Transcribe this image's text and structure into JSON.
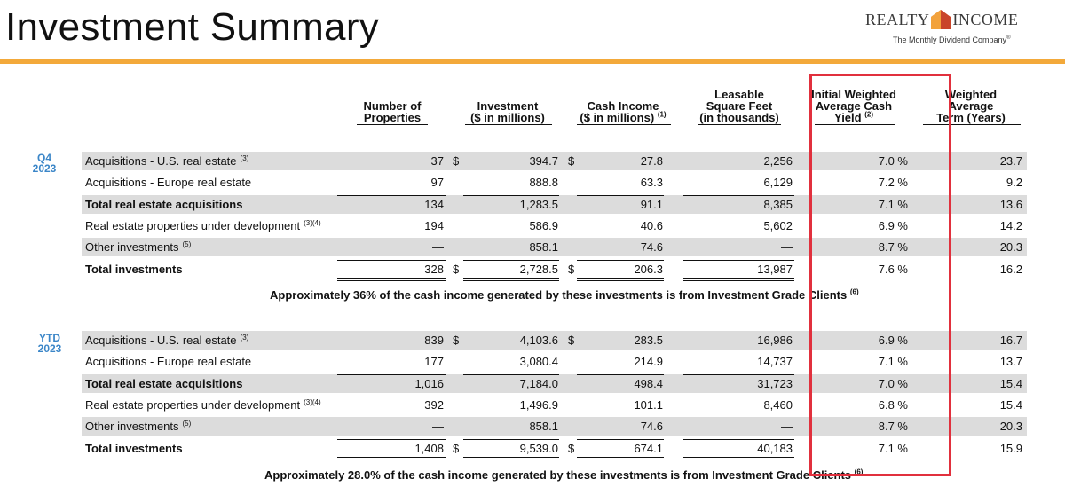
{
  "title": "Investment Summary",
  "logo": {
    "left": "REALTY",
    "right": "INCOME",
    "tagline": "The Monthly Dividend Company",
    "tagline_mark": "®"
  },
  "headers": {
    "num_props": [
      "Number of",
      "Properties"
    ],
    "investment": [
      "Investment",
      "($ in millions)"
    ],
    "cash_income": [
      "Cash Income",
      "($ in millions)"
    ],
    "cash_income_note": "(1)",
    "leasable": [
      "Leasable",
      "Square Feet",
      "(in thousands)"
    ],
    "yield": [
      "Initial Weighted",
      "Average Cash",
      "Yield"
    ],
    "yield_note": "(2)",
    "term": [
      "Weighted",
      "Average",
      "Term (Years)"
    ]
  },
  "sections": [
    {
      "period": [
        "Q4",
        "2023"
      ],
      "rows": [
        {
          "label": "Acquisitions - U.S. real estate",
          "note": "(3)",
          "bold": false,
          "props": "37",
          "dollar1": "$",
          "investment": "394.7",
          "dollar2": "$",
          "cash": "27.8",
          "sqft": "2,256",
          "yield": "7.0 %",
          "term": "23.7"
        },
        {
          "label": "Acquisitions - Europe real estate",
          "note": "",
          "bold": false,
          "props": "97",
          "dollar1": "",
          "investment": "888.8",
          "dollar2": "",
          "cash": "63.3",
          "sqft": "6,129",
          "yield": "7.2 %",
          "term": "9.2"
        },
        {
          "label": "Total real estate acquisitions",
          "note": "",
          "bold": true,
          "props": "134",
          "dollar1": "",
          "investment": "1,283.5",
          "dollar2": "",
          "cash": "91.1",
          "sqft": "8,385",
          "yield": "7.1 %",
          "term": "13.6"
        },
        {
          "label": "Real estate properties under development",
          "note": "(3)(4)",
          "bold": false,
          "props": "194",
          "dollar1": "",
          "investment": "586.9",
          "dollar2": "",
          "cash": "40.6",
          "sqft": "5,602",
          "yield": "6.9 %",
          "term": "14.2"
        },
        {
          "label": "Other investments",
          "note": "(5)",
          "bold": false,
          "props": "—",
          "dollar1": "",
          "investment": "858.1",
          "dollar2": "",
          "cash": "74.6",
          "sqft": "—",
          "yield": "8.7 %",
          "term": "20.3"
        },
        {
          "label": "Total investments",
          "note": "",
          "bold": true,
          "props": "328",
          "dollar1": "$",
          "investment": "2,728.5",
          "dollar2": "$",
          "cash": "206.3",
          "sqft": "13,987",
          "yield": "7.6 %",
          "term": "16.2"
        }
      ],
      "note": "Approximately 36% of the cash income generated by these investments is from Investment Grade Clients",
      "note_mark": "(6)"
    },
    {
      "period": [
        "YTD",
        "2023"
      ],
      "rows": [
        {
          "label": "Acquisitions - U.S. real estate",
          "note": "(3)",
          "bold": false,
          "props": "839",
          "dollar1": "$",
          "investment": "4,103.6",
          "dollar2": "$",
          "cash": "283.5",
          "sqft": "16,986",
          "yield": "6.9 %",
          "term": "16.7"
        },
        {
          "label": "Acquisitions - Europe real estate",
          "note": "",
          "bold": false,
          "props": "177",
          "dollar1": "",
          "investment": "3,080.4",
          "dollar2": "",
          "cash": "214.9",
          "sqft": "14,737",
          "yield": "7.1 %",
          "term": "13.7"
        },
        {
          "label": "Total real estate acquisitions",
          "note": "",
          "bold": true,
          "props": "1,016",
          "dollar1": "",
          "investment": "7,184.0",
          "dollar2": "",
          "cash": "498.4",
          "sqft": "31,723",
          "yield": "7.0 %",
          "term": "15.4"
        },
        {
          "label": "Real estate properties under development",
          "note": "(3)(4)",
          "bold": false,
          "props": "392",
          "dollar1": "",
          "investment": "1,496.9",
          "dollar2": "",
          "cash": "101.1",
          "sqft": "8,460",
          "yield": "6.8 %",
          "term": "15.4"
        },
        {
          "label": "Other investments",
          "note": "(5)",
          "bold": false,
          "props": "—",
          "dollar1": "",
          "investment": "858.1",
          "dollar2": "",
          "cash": "74.6",
          "sqft": "—",
          "yield": "8.7 %",
          "term": "20.3"
        },
        {
          "label": "Total investments",
          "note": "",
          "bold": true,
          "props": "1,408",
          "dollar1": "$",
          "investment": "9,539.0",
          "dollar2": "$",
          "cash": "674.1",
          "sqft": "40,183",
          "yield": "7.1 %",
          "term": "15.9"
        }
      ],
      "note": "Approximately 28.0% of the cash income generated by these investments is from Investment Grade Clients",
      "note_mark": "(6)"
    }
  ],
  "colors": {
    "accent": "#f3a93a",
    "period": "#3b86c8",
    "band": "#dcdcdc",
    "highlight": "#e1303d"
  }
}
